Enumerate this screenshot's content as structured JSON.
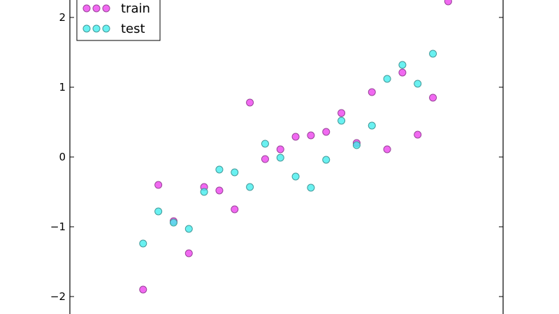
{
  "chart_data": {
    "type": "scatter",
    "title": "",
    "xlabel": "",
    "ylabel": "",
    "xlim": [
      -0.04,
      1.38
    ],
    "ylim": [
      -2.35,
      2.35
    ],
    "grid": false,
    "legend_placement": "top-left",
    "yticks": [
      {
        "value": -2,
        "label": "−2"
      },
      {
        "value": -1,
        "label": "−1"
      },
      {
        "value": 0,
        "label": "0"
      },
      {
        "value": 1,
        "label": "1"
      },
      {
        "value": 2,
        "label": "2"
      }
    ],
    "series": [
      {
        "name": "train",
        "color": "#ee44ee",
        "edge_color": "#994499",
        "x": [
          0.2,
          0.25,
          0.3,
          0.35,
          0.4,
          0.45,
          0.5,
          0.55,
          0.6,
          0.65,
          0.7,
          0.75,
          0.8,
          0.85,
          0.9,
          0.95,
          1.0,
          1.05,
          1.1,
          1.15,
          1.2
        ],
        "y": [
          -1.9,
          -0.4,
          -0.92,
          -1.38,
          -0.43,
          -0.48,
          -0.75,
          0.78,
          -0.03,
          0.11,
          0.29,
          0.31,
          0.36,
          0.63,
          0.2,
          0.93,
          0.11,
          1.21,
          0.32,
          0.85,
          2.23
        ]
      },
      {
        "name": "test",
        "color": "#44eeee",
        "edge_color": "#449999",
        "x": [
          0.2,
          0.25,
          0.3,
          0.35,
          0.4,
          0.45,
          0.5,
          0.55,
          0.6,
          0.65,
          0.7,
          0.75,
          0.8,
          0.85,
          0.9,
          0.95,
          1.0,
          1.05,
          1.1,
          1.15
        ],
        "y": [
          -1.24,
          -0.78,
          -0.94,
          -1.03,
          -0.5,
          -0.18,
          -0.22,
          -0.43,
          0.19,
          -0.01,
          -0.28,
          -0.44,
          -0.04,
          0.52,
          0.17,
          0.45,
          1.12,
          1.32,
          1.05,
          1.48
        ]
      }
    ]
  }
}
